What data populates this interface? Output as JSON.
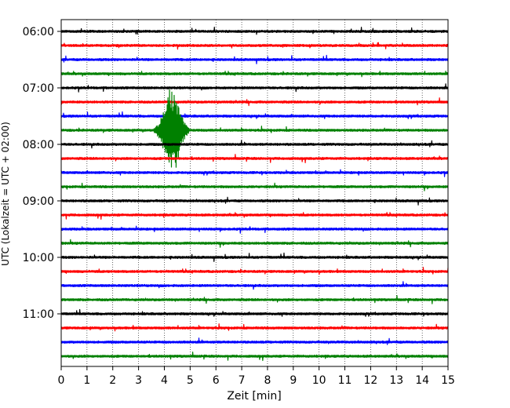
{
  "chart_data": {
    "type": "line",
    "title": "",
    "xlabel": "Zeit  [min]",
    "ylabel": "UTC (Lokalzeit = UTC + 02:00)",
    "xlim": [
      0,
      15
    ],
    "x_ticks": [
      "0",
      "1",
      "2",
      "3",
      "4",
      "5",
      "6",
      "7",
      "8",
      "9",
      "10",
      "11",
      "12",
      "13",
      "14",
      "15"
    ],
    "y_ticks": [
      "06:00",
      "07:00",
      "08:00",
      "09:00",
      "10:00",
      "11:00"
    ],
    "trace_interval_minutes": 15,
    "first_trace": "06:00",
    "trace_colors": [
      "#000000",
      "#ff0000",
      "#0000ff",
      "#008000"
    ],
    "grid": "vertical-dotted",
    "series": [
      {
        "start": "06:00",
        "color": "#000000"
      },
      {
        "start": "06:15",
        "color": "#ff0000"
      },
      {
        "start": "06:30",
        "color": "#0000ff"
      },
      {
        "start": "06:45",
        "color": "#008000"
      },
      {
        "start": "07:00",
        "color": "#000000"
      },
      {
        "start": "07:15",
        "color": "#ff0000"
      },
      {
        "start": "07:30",
        "color": "#0000ff"
      },
      {
        "start": "07:45",
        "color": "#008000",
        "event": {
          "minutes": [
            3.6,
            4.95
          ],
          "peak_minute": 4.3,
          "amplitude": "large"
        }
      },
      {
        "start": "08:00",
        "color": "#000000"
      },
      {
        "start": "08:15",
        "color": "#ff0000"
      },
      {
        "start": "08:30",
        "color": "#0000ff"
      },
      {
        "start": "08:45",
        "color": "#008000"
      },
      {
        "start": "09:00",
        "color": "#000000"
      },
      {
        "start": "09:15",
        "color": "#ff0000"
      },
      {
        "start": "09:30",
        "color": "#0000ff"
      },
      {
        "start": "09:45",
        "color": "#008000"
      },
      {
        "start": "10:00",
        "color": "#000000"
      },
      {
        "start": "10:15",
        "color": "#ff0000"
      },
      {
        "start": "10:30",
        "color": "#0000ff"
      },
      {
        "start": "10:45",
        "color": "#008000"
      },
      {
        "start": "11:00",
        "color": "#000000"
      },
      {
        "start": "11:15",
        "color": "#ff0000"
      },
      {
        "start": "11:30",
        "color": "#0000ff"
      },
      {
        "start": "11:45",
        "color": "#008000"
      }
    ]
  }
}
